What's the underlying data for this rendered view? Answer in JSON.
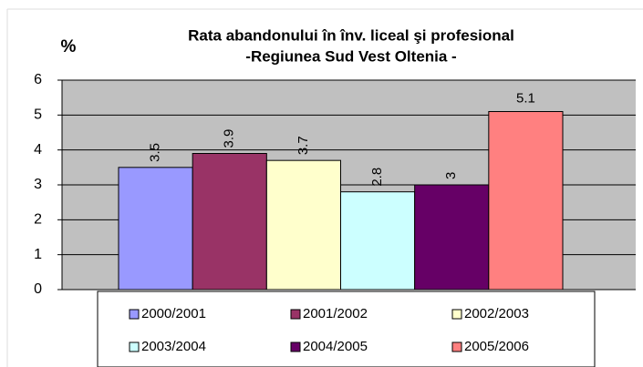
{
  "chart_data": {
    "type": "bar",
    "title": "Rata abandonului  în înv. liceal şi profesional",
    "subtitle": "-Regiunea  Sud Vest Oltenia -",
    "y_label": "%",
    "series": [
      {
        "name": "2000/2001",
        "color": "#9999ff",
        "values": [
          3.5
        ]
      },
      {
        "name": "2001/2002",
        "color": "#993366",
        "values": [
          3.9
        ]
      },
      {
        "name": "2002/2003",
        "color": "#ffffcc",
        "values": [
          3.7
        ]
      },
      {
        "name": "2003/2004",
        "color": "#ccffff",
        "values": [
          2.8
        ]
      },
      {
        "name": "2004/2005",
        "color": "#660066",
        "values": [
          3
        ]
      },
      {
        "name": "2005/2006",
        "color": "#ff8080",
        "values": [
          5.1
        ]
      }
    ],
    "ylim": [
      0,
      6
    ],
    "yticks": [
      0,
      1,
      2,
      3,
      4,
      5,
      6
    ],
    "grid": true,
    "legend": "bottom",
    "plot_color": "#c0c0c0"
  }
}
